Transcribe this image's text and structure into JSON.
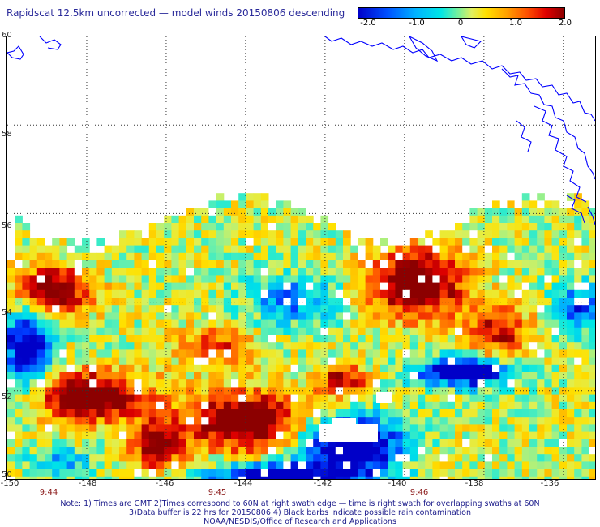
{
  "title": "Rapidscat 12.5km uncorrected — model winds 20150806 descending",
  "colorbar": {
    "ticks": [
      "-2.0",
      "-1.0",
      "0",
      "1.0",
      "2.0"
    ],
    "range": [
      -2.0,
      2.0
    ]
  },
  "map": {
    "lat_labels": [
      "60",
      "58",
      "56",
      "54",
      "52",
      "50"
    ],
    "lon_labels": [
      "-150",
      "-148",
      "-146",
      "-144",
      "-142",
      "-140",
      "-138",
      "-136"
    ],
    "lat_range": [
      50,
      60
    ],
    "lon_range": [
      -150,
      -135.2
    ],
    "time_labels": [
      "9:44",
      "9:45",
      "9:46"
    ],
    "coastline_color": "#0000ff",
    "grid": "dotted"
  },
  "notes": {
    "line1": "Note: 1) Times are GMT 2)Times correspond to 60N at right swath edge — time is right swath for overlapping swaths at 60N",
    "line2": "3)Data buffer is 22 hrs for 20150806 4) Black barbs indicate possible rain contamination",
    "line3": "NOAA/NESDIS/Office of Research and Applications"
  }
}
